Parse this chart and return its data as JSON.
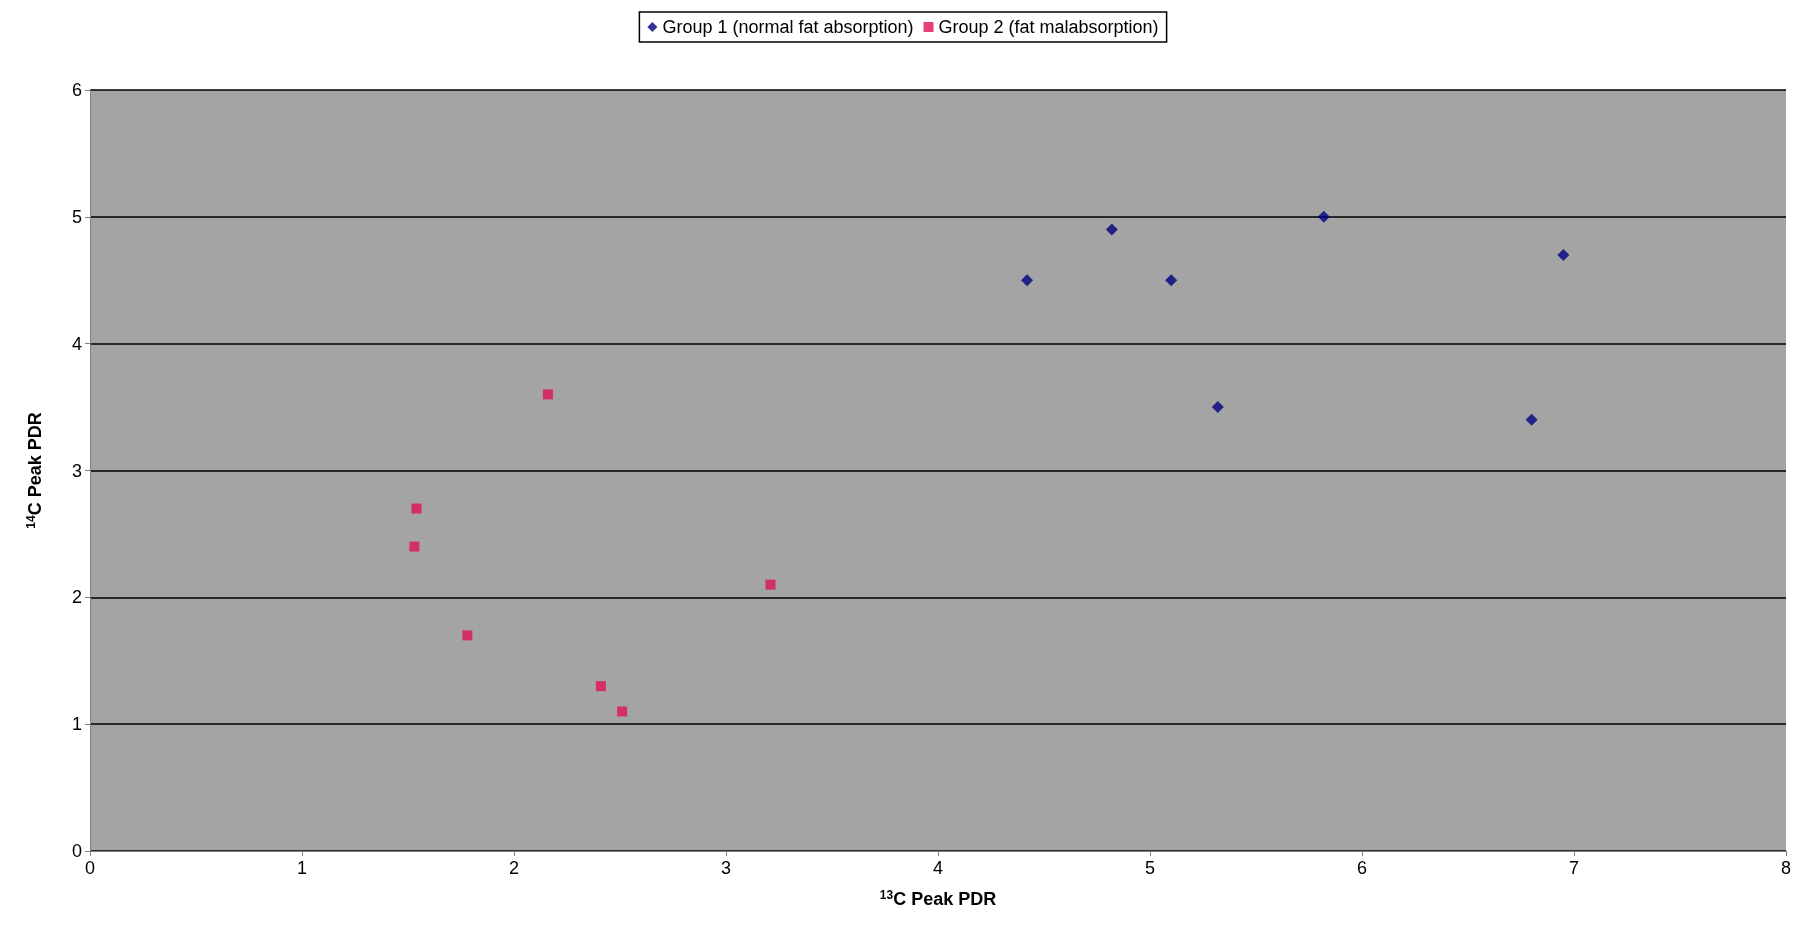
{
  "chart_data": {
    "type": "scatter",
    "xlabel": "$^{13}$C Peak PDR",
    "ylabel": "$^{14}$C Peak PDR",
    "series": [
      {
        "name": "Group 1 (normal fat absorption)",
        "color": "#000080",
        "marker": "diamond",
        "x": [
          4.42,
          4.82,
          5.1,
          5.32,
          5.82,
          6.8,
          6.95
        ],
        "values": [
          4.5,
          4.9,
          4.5,
          3.5,
          5.0,
          3.4,
          4.7
        ]
      },
      {
        "name": "Group 2 (fat malabsorption)",
        "color": "#e0105a",
        "marker": "square",
        "x": [
          1.54,
          1.53,
          1.78,
          2.16,
          2.41,
          2.51,
          3.21
        ],
        "values": [
          2.7,
          2.4,
          1.7,
          3.6,
          1.3,
          1.1,
          2.1
        ]
      }
    ],
    "xlim": [
      0,
      8
    ],
    "xticks": [
      0,
      1,
      2,
      3,
      4,
      5,
      6,
      7,
      8
    ],
    "ylim": [
      0,
      6
    ],
    "yticks": [
      0,
      1,
      2,
      3,
      4,
      5,
      6
    ],
    "grid": "y",
    "legend": "top"
  }
}
